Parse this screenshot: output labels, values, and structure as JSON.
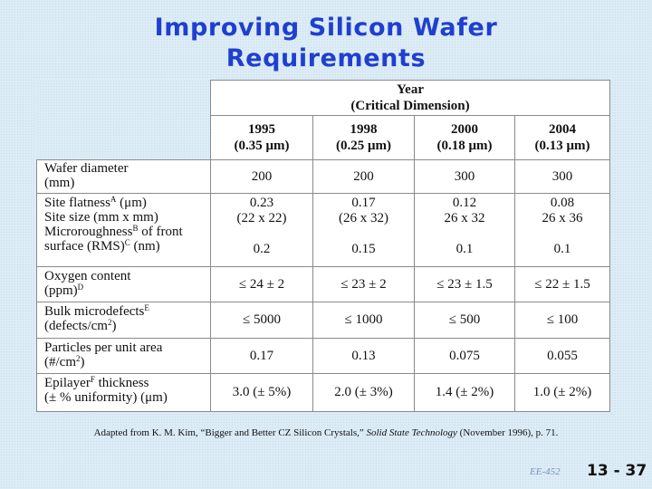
{
  "title_line1": "Improving Silicon Wafer",
  "title_line2": "Requirements",
  "table": {
    "header_group": "Year",
    "header_group_sub": "(Critical Dimension)",
    "columns": [
      {
        "year": "1995",
        "cd": "(0.35 μm)"
      },
      {
        "year": "1998",
        "cd": "(0.25 μm)"
      },
      {
        "year": "2000",
        "cd": "(0.18 μm)"
      },
      {
        "year": "2004",
        "cd": "(0.13 μm)"
      }
    ],
    "rows": [
      {
        "label_lines": [
          "Wafer diameter",
          "(mm)"
        ],
        "values": [
          "200",
          "200",
          "300",
          "300"
        ]
      },
      {
        "label_lines": [
          "Site flatness",
          "A",
          " (μm)"
        ],
        "values": [
          "0.23",
          "0.17",
          "0.12",
          "0.08"
        ]
      },
      {
        "label_lines": [
          "Site size (mm x mm)"
        ],
        "values": [
          "(22 x 22)",
          "(26 x 32)",
          "26 x 32",
          "26 x 36"
        ]
      },
      {
        "label_lines": [
          "Microroughness",
          "B",
          " of front",
          "surface (RMS)",
          "C",
          " (nm)"
        ],
        "values": [
          "0.2",
          "0.15",
          "0.1",
          "0.1"
        ]
      },
      {
        "label_lines": [
          "Oxygen content",
          "(ppm)",
          "D"
        ],
        "values": [
          "≤ 24 ± 2",
          "≤ 23 ± 2",
          "≤ 23 ± 1.5",
          "≤ 22 ± 1.5"
        ]
      },
      {
        "label_lines": [
          "Bulk microdefects",
          "E",
          "(defects/cm",
          "2",
          ")"
        ],
        "values": [
          "≤ 5000",
          "≤ 1000",
          "≤ 500",
          "≤ 100"
        ]
      },
      {
        "label_lines": [
          "Particles per unit area",
          "(#/cm",
          "2",
          ")"
        ],
        "values": [
          "0.17",
          "0.13",
          "0.075",
          "0.055"
        ]
      },
      {
        "label_lines": [
          "Epilayer",
          "F",
          " thickness",
          "(± % uniformity) (μm)"
        ],
        "values": [
          "3.0 (± 5%)",
          "2.0 (± 3%)",
          "1.4 (± 2%)",
          "1.0 (± 2%)"
        ]
      }
    ]
  },
  "caption": {
    "pre": "Adapted from K. M. Kim, “Bigger and Better CZ Silicon Crystals,” ",
    "journal": "Solid State Technology",
    "post": " (November 1996), p. 71."
  },
  "footer": {
    "course": "EE-452",
    "slide_number": "13 - 37"
  }
}
